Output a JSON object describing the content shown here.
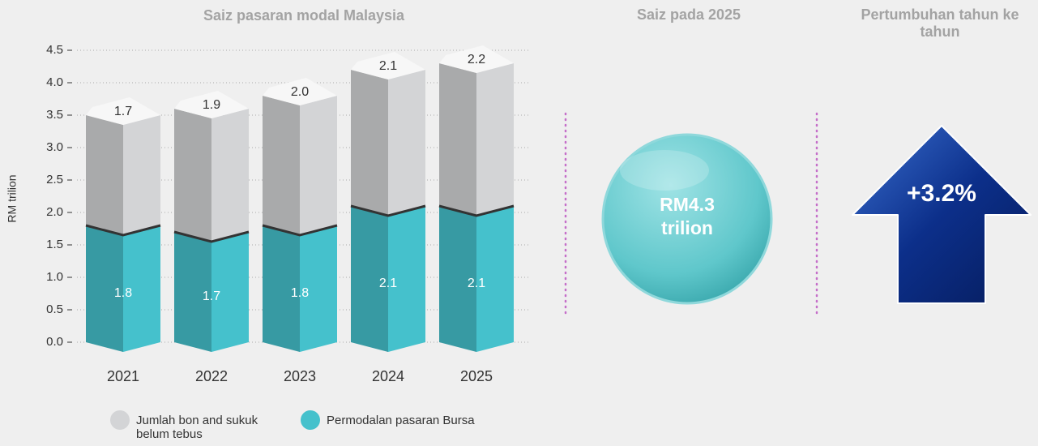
{
  "chart_data": {
    "type": "bar",
    "stacked": true,
    "title": "Saiz pasaran modal Malaysia",
    "y_label": "RM trilion",
    "categories": [
      "2021",
      "2022",
      "2023",
      "2024",
      "2025"
    ],
    "series": [
      {
        "name": "Permodalan pasaran Bursa",
        "color": "#45c1cc",
        "values": [
          1.8,
          1.7,
          1.8,
          2.1,
          2.1
        ],
        "value_labels": [
          "1.8",
          "1.7",
          "1.8",
          "2.1",
          "2.1"
        ]
      },
      {
        "name": "Jumlah bon and sukuk belum tebus",
        "color": "#d3d4d6",
        "values": [
          1.7,
          1.9,
          2.0,
          2.1,
          2.2
        ],
        "value_labels": [
          "1.7",
          "1.9",
          "2.0",
          "2.1",
          "2.2"
        ]
      }
    ],
    "ylim": [
      0,
      4.5
    ],
    "yticks": [
      {
        "value": 0,
        "label": "0.0"
      },
      0.5,
      {
        "value": 1,
        "label": "1.0"
      },
      1.5,
      {
        "value": 2,
        "label": "2.0"
      },
      2.5,
      {
        "value": 3,
        "label": "3.0"
      },
      3.5,
      {
        "value": 4,
        "label": "4.0"
      },
      4.5
    ],
    "grid": true
  },
  "summary": {
    "title": "Saiz pada 2025",
    "value": "RM4.3 trilion"
  },
  "growth": {
    "title": "Pertumbuhan tahun ke tahun",
    "value": "+3.2%"
  }
}
